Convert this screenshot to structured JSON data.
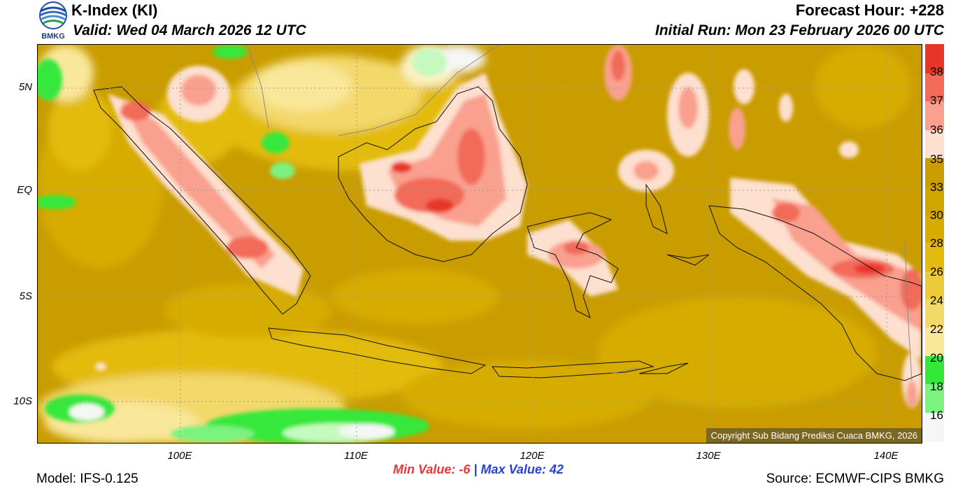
{
  "header": {
    "logo_text": "BMKG",
    "title": "K-Index (KI)",
    "valid": "Valid: Wed 04 March 2026 12 UTC",
    "forecast_hour": "Forecast Hour: +228",
    "initial_run": "Initial Run: Mon 23 February 2026 00 UTC"
  },
  "map": {
    "lat_labels": [
      "5N",
      "EQ",
      "5S",
      "10S"
    ],
    "lon_labels": [
      "100E",
      "110E",
      "120E",
      "130E",
      "140E"
    ],
    "copyright": "Copyright Sub Bidang Prediksi Cuaca BMKG, 2026"
  },
  "colorbar": {
    "labels": [
      "38",
      "37",
      "36",
      "35",
      "33",
      "30",
      "28",
      "26",
      "24",
      "22",
      "20",
      "18",
      "16"
    ],
    "colors": [
      "#e8352a",
      "#f26a58",
      "#f9a08f",
      "#fde0cf",
      "#c99c00",
      "#d6ac00",
      "#e3bb10",
      "#ecca3a",
      "#f3d86a",
      "#f9e79a",
      "#fbf2c4",
      "#34e83a",
      "#7cf27f",
      "#c4f9bf",
      "#f6f6f6"
    ]
  },
  "footer": {
    "min_label": "Min Value:",
    "min_value": "-6",
    "separator": "|",
    "max_label": "Max Value:",
    "max_value": "42",
    "model": "Model: IFS-0.125",
    "source": "Source: ECMWF-CIPS BMKG"
  }
}
